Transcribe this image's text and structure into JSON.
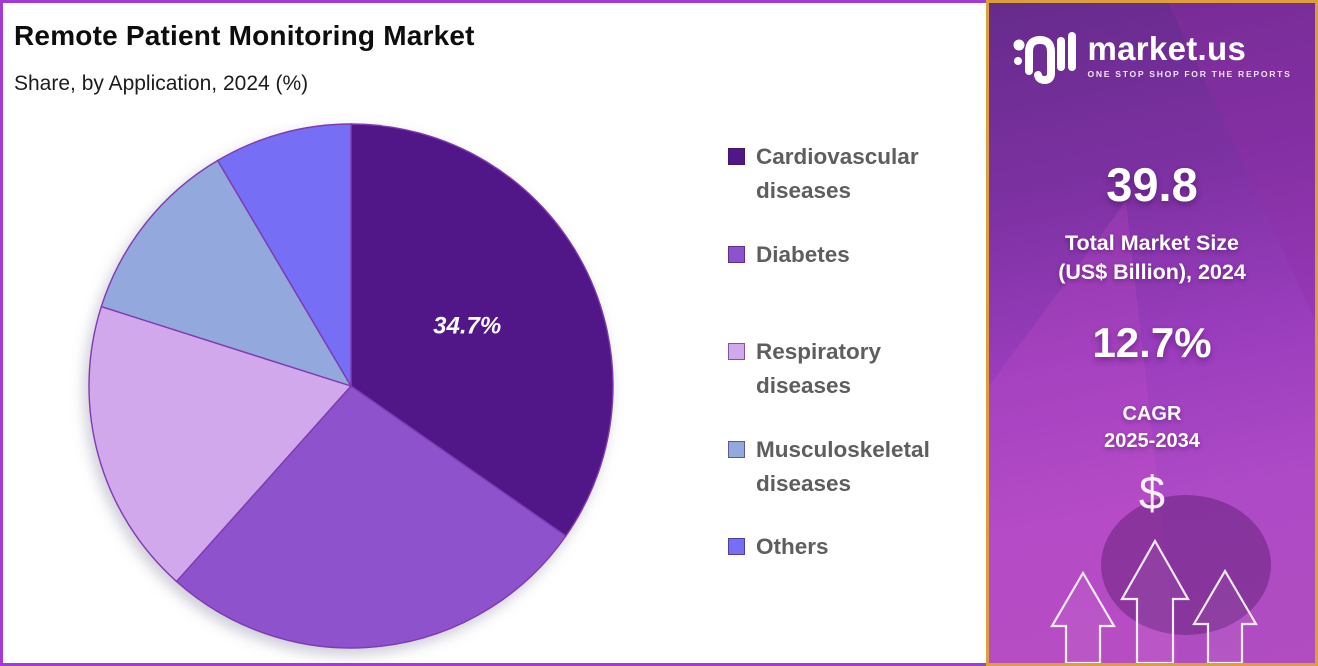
{
  "page": {
    "title": "Remote Patient Monitoring Market",
    "subtitle": "Share, by Application, 2024 (%)",
    "frame_color": "#A23AD6"
  },
  "chart_data": {
    "type": "pie",
    "title": "Remote Patient Monitoring Market",
    "subtitle": "Share, by Application, 2024 (%)",
    "unit": "%",
    "start_angle_deg": 0,
    "direction": "clockwise",
    "legend_position": "right",
    "stroke_color": "#7E3AB1",
    "slices": [
      {
        "label": "Cardiovascular diseases",
        "value": 34.7,
        "color": "#511788",
        "data_label": "34.7%"
      },
      {
        "label": "Diabetes",
        "value": 26.9,
        "color": "#8F52CD",
        "data_label": ""
      },
      {
        "label": "Respiratory diseases",
        "value": 18.3,
        "color": "#D1A8EC",
        "data_label": ""
      },
      {
        "label": "Musculoskeletal diseases",
        "value": 11.6,
        "color": "#93A8DC",
        "data_label": ""
      },
      {
        "label": "Others",
        "value": 8.5,
        "color": "#766EF5",
        "data_label": ""
      }
    ]
  },
  "side_panel": {
    "brand": {
      "name": "market.us",
      "tagline": "ONE STOP SHOP FOR THE REPORTS"
    },
    "market_size_value": "39.8",
    "market_size_label": "Total Market Size\n(US$ Billion), 2024",
    "cagr_value": "12.7%",
    "cagr_label": "CAGR\n2025-2034",
    "dollar_symbol": "$",
    "border_color": "#DD9E3E",
    "background_colors": [
      "#662b8c",
      "#9a3dbd",
      "#b14dc0"
    ]
  }
}
